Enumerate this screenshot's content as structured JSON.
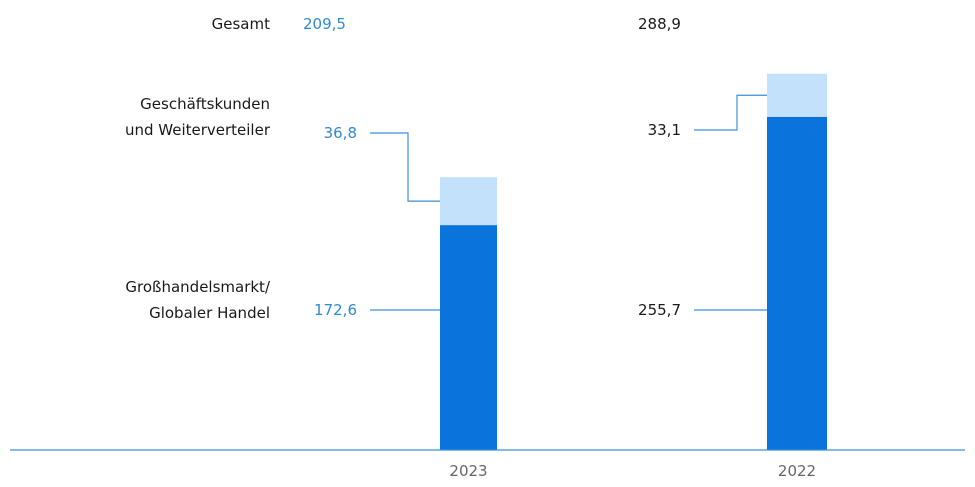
{
  "chart_data": {
    "type": "stacked_bar",
    "categories": [
      "2023",
      "2022"
    ],
    "series": [
      {
        "name": "Großhandelsmarkt/\nGlobaler Handel",
        "color": "#0a73dc",
        "values": [
          172.6,
          255.7
        ],
        "value_labels": [
          "172,6",
          "255,7"
        ]
      },
      {
        "name": "Geschäftskunden\nund Weiterverteiler",
        "color": "#c3e1fa",
        "values": [
          36.8,
          33.1
        ],
        "value_labels": [
          "36,8",
          "33,1"
        ]
      }
    ],
    "totals": {
      "name": "Gesamt",
      "values": [
        209.5,
        288.9
      ],
      "value_labels": [
        "209,5",
        "288,9"
      ]
    },
    "label_colors": [
      "#2f8ad6",
      "#1a1a1a"
    ],
    "axis_color": "#3d8fd6"
  }
}
